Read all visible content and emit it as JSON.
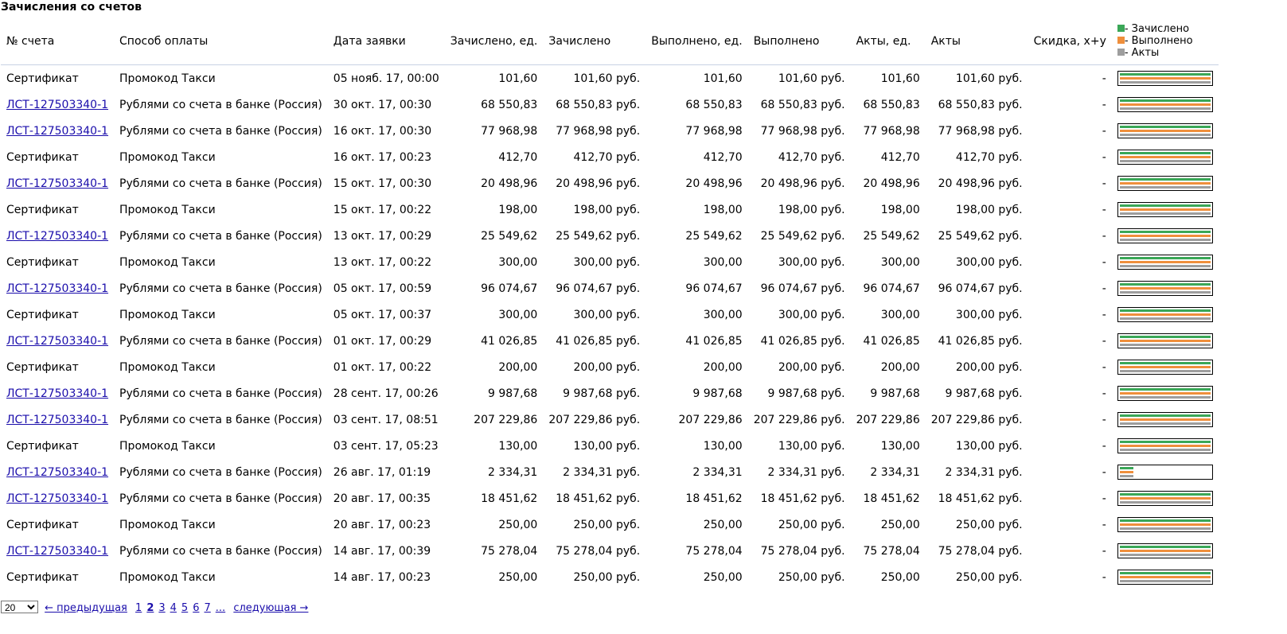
{
  "title": "Зачисления со счетов",
  "columns": {
    "invoice": "№ счета",
    "method": "Способ оплаты",
    "date": "Дата заявки",
    "credited_units": "Зачислено, ед.",
    "credited": "Зачислено",
    "done_units": "Выполнено, ед.",
    "done": "Выполнено",
    "acts_units": "Акты, ед.",
    "acts": "Акты",
    "discount": "Скидка, x+y"
  },
  "legend": {
    "credited": "- Зачислено",
    "done": "- Выполнено",
    "acts": "- Акты",
    "colors": {
      "credited": "#3aa757",
      "done": "#ef8f3c",
      "acts": "#9e9e9e"
    }
  },
  "rows": [
    {
      "invoice": "Сертификат",
      "link": false,
      "method": "Промокод Такси",
      "date": "05 нояб. 17, 00:00",
      "credited_units": "101,60",
      "credited": "101,60 руб.",
      "done_units": "101,60",
      "done": "101,60 руб.",
      "acts_units": "101,60",
      "acts": "101,60 руб.",
      "discount": "-",
      "fill": 1
    },
    {
      "invoice": "ЛСТ-127503340-1",
      "link": true,
      "method": "Рублями со счета в банке (Россия)",
      "date": "30 окт. 17, 00:30",
      "credited_units": "68 550,83",
      "credited": "68 550,83 руб.",
      "done_units": "68 550,83",
      "done": "68 550,83 руб.",
      "acts_units": "68 550,83",
      "acts": "68 550,83 руб.",
      "discount": "-",
      "fill": 1
    },
    {
      "invoice": "ЛСТ-127503340-1",
      "link": true,
      "method": "Рублями со счета в банке (Россия)",
      "date": "16 окт. 17, 00:30",
      "credited_units": "77 968,98",
      "credited": "77 968,98 руб.",
      "done_units": "77 968,98",
      "done": "77 968,98 руб.",
      "acts_units": "77 968,98",
      "acts": "77 968,98 руб.",
      "discount": "-",
      "fill": 1
    },
    {
      "invoice": "Сертификат",
      "link": false,
      "method": "Промокод Такси",
      "date": "16 окт. 17, 00:23",
      "credited_units": "412,70",
      "credited": "412,70 руб.",
      "done_units": "412,70",
      "done": "412,70 руб.",
      "acts_units": "412,70",
      "acts": "412,70 руб.",
      "discount": "-",
      "fill": 1
    },
    {
      "invoice": "ЛСТ-127503340-1",
      "link": true,
      "method": "Рублями со счета в банке (Россия)",
      "date": "15 окт. 17, 00:30",
      "credited_units": "20 498,96",
      "credited": "20 498,96 руб.",
      "done_units": "20 498,96",
      "done": "20 498,96 руб.",
      "acts_units": "20 498,96",
      "acts": "20 498,96 руб.",
      "discount": "-",
      "fill": 1
    },
    {
      "invoice": "Сертификат",
      "link": false,
      "method": "Промокод Такси",
      "date": "15 окт. 17, 00:22",
      "credited_units": "198,00",
      "credited": "198,00 руб.",
      "done_units": "198,00",
      "done": "198,00 руб.",
      "acts_units": "198,00",
      "acts": "198,00 руб.",
      "discount": "-",
      "fill": 1
    },
    {
      "invoice": "ЛСТ-127503340-1",
      "link": true,
      "method": "Рублями со счета в банке (Россия)",
      "date": "13 окт. 17, 00:29",
      "credited_units": "25 549,62",
      "credited": "25 549,62 руб.",
      "done_units": "25 549,62",
      "done": "25 549,62 руб.",
      "acts_units": "25 549,62",
      "acts": "25 549,62 руб.",
      "discount": "-",
      "fill": 1
    },
    {
      "invoice": "Сертификат",
      "link": false,
      "method": "Промокод Такси",
      "date": "13 окт. 17, 00:22",
      "credited_units": "300,00",
      "credited": "300,00 руб.",
      "done_units": "300,00",
      "done": "300,00 руб.",
      "acts_units": "300,00",
      "acts": "300,00 руб.",
      "discount": "-",
      "fill": 1
    },
    {
      "invoice": "ЛСТ-127503340-1",
      "link": true,
      "method": "Рублями со счета в банке (Россия)",
      "date": "05 окт. 17, 00:59",
      "credited_units": "96 074,67",
      "credited": "96 074,67 руб.",
      "done_units": "96 074,67",
      "done": "96 074,67 руб.",
      "acts_units": "96 074,67",
      "acts": "96 074,67 руб.",
      "discount": "-",
      "fill": 1
    },
    {
      "invoice": "Сертификат",
      "link": false,
      "method": "Промокод Такси",
      "date": "05 окт. 17, 00:37",
      "credited_units": "300,00",
      "credited": "300,00 руб.",
      "done_units": "300,00",
      "done": "300,00 руб.",
      "acts_units": "300,00",
      "acts": "300,00 руб.",
      "discount": "-",
      "fill": 1
    },
    {
      "invoice": "ЛСТ-127503340-1",
      "link": true,
      "method": "Рублями со счета в банке (Россия)",
      "date": "01 окт. 17, 00:29",
      "credited_units": "41 026,85",
      "credited": "41 026,85 руб.",
      "done_units": "41 026,85",
      "done": "41 026,85 руб.",
      "acts_units": "41 026,85",
      "acts": "41 026,85 руб.",
      "discount": "-",
      "fill": 1
    },
    {
      "invoice": "Сертификат",
      "link": false,
      "method": "Промокод Такси",
      "date": "01 окт. 17, 00:22",
      "credited_units": "200,00",
      "credited": "200,00 руб.",
      "done_units": "200,00",
      "done": "200,00 руб.",
      "acts_units": "200,00",
      "acts": "200,00 руб.",
      "discount": "-",
      "fill": 1
    },
    {
      "invoice": "ЛСТ-127503340-1",
      "link": true,
      "method": "Рублями со счета в банке (Россия)",
      "date": "28 сент. 17, 00:26",
      "credited_units": "9 987,68",
      "credited": "9 987,68 руб.",
      "done_units": "9 987,68",
      "done": "9 987,68 руб.",
      "acts_units": "9 987,68",
      "acts": "9 987,68 руб.",
      "discount": "-",
      "fill": 1
    },
    {
      "invoice": "ЛСТ-127503340-1",
      "link": true,
      "method": "Рублями со счета в банке (Россия)",
      "date": "03 сент. 17, 08:51",
      "credited_units": "207 229,86",
      "credited": "207 229,86 руб.",
      "done_units": "207 229,86",
      "done": "207 229,86 руб.",
      "acts_units": "207 229,86",
      "acts": "207 229,86 руб.",
      "discount": "-",
      "fill": 1
    },
    {
      "invoice": "Сертификат",
      "link": false,
      "method": "Промокод Такси",
      "date": "03 сент. 17, 05:23",
      "credited_units": "130,00",
      "credited": "130,00 руб.",
      "done_units": "130,00",
      "done": "130,00 руб.",
      "acts_units": "130,00",
      "acts": "130,00 руб.",
      "discount": "-",
      "fill": 1
    },
    {
      "invoice": "ЛСТ-127503340-1",
      "link": true,
      "method": "Рублями со счета в банке (Россия)",
      "date": "26 авг. 17, 01:19",
      "credited_units": "2 334,31",
      "credited": "2 334,31 руб.",
      "done_units": "2 334,31",
      "done": "2 334,31 руб.",
      "acts_units": "2 334,31",
      "acts": "2 334,31 руб.",
      "discount": "-",
      "fill": 0.15
    },
    {
      "invoice": "ЛСТ-127503340-1",
      "link": true,
      "method": "Рублями со счета в банке (Россия)",
      "date": "20 авг. 17, 00:35",
      "credited_units": "18 451,62",
      "credited": "18 451,62 руб.",
      "done_units": "18 451,62",
      "done": "18 451,62 руб.",
      "acts_units": "18 451,62",
      "acts": "18 451,62 руб.",
      "discount": "-",
      "fill": 1
    },
    {
      "invoice": "Сертификат",
      "link": false,
      "method": "Промокод Такси",
      "date": "20 авг. 17, 00:23",
      "credited_units": "250,00",
      "credited": "250,00 руб.",
      "done_units": "250,00",
      "done": "250,00 руб.",
      "acts_units": "250,00",
      "acts": "250,00 руб.",
      "discount": "-",
      "fill": 1
    },
    {
      "invoice": "ЛСТ-127503340-1",
      "link": true,
      "method": "Рублями со счета в банке (Россия)",
      "date": "14 авг. 17, 00:39",
      "credited_units": "75 278,04",
      "credited": "75 278,04 руб.",
      "done_units": "75 278,04",
      "done": "75 278,04 руб.",
      "acts_units": "75 278,04",
      "acts": "75 278,04 руб.",
      "discount": "-",
      "fill": 1
    },
    {
      "invoice": "Сертификат",
      "link": false,
      "method": "Промокод Такси",
      "date": "14 авг. 17, 00:23",
      "credited_units": "250,00",
      "credited": "250,00 руб.",
      "done_units": "250,00",
      "done": "250,00 руб.",
      "acts_units": "250,00",
      "acts": "250,00 руб.",
      "discount": "-",
      "fill": 1
    }
  ],
  "pager": {
    "page_size": "20",
    "prev": "← предыдущая",
    "pages": [
      "1",
      "2",
      "3",
      "4",
      "5",
      "6",
      "7",
      "..."
    ],
    "current": "2",
    "next": "следующая →"
  }
}
